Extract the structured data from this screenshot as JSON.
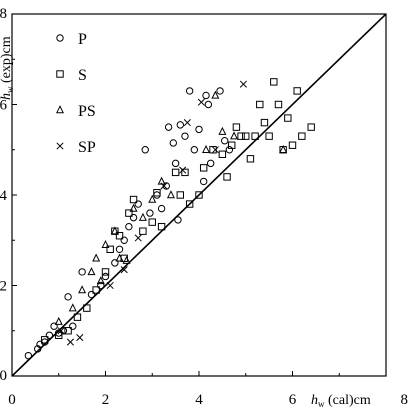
{
  "chart_data": {
    "type": "scatter",
    "title": "",
    "xlabel": {
      "var": "h",
      "sub": "w",
      "rest": "(cal)cm"
    },
    "ylabel": {
      "var": "h",
      "sub": "w",
      "rest": "(exp)cm"
    },
    "xlim": [
      0,
      8
    ],
    "ylim": [
      0,
      8
    ],
    "xticks": [
      "0",
      "2",
      "4",
      "6",
      "8"
    ],
    "yticks": [
      "0",
      "2",
      "4",
      "6",
      "8"
    ],
    "grid": false,
    "legend_position": "top-left",
    "reference_line": {
      "x": [
        0,
        8
      ],
      "y": [
        0,
        8
      ]
    },
    "series": [
      {
        "name": "P",
        "marker": "circle",
        "points": [
          [
            0.35,
            0.45
          ],
          [
            0.55,
            0.6
          ],
          [
            0.6,
            0.7
          ],
          [
            0.7,
            0.75
          ],
          [
            0.8,
            0.9
          ],
          [
            0.9,
            1.1
          ],
          [
            1.0,
            0.95
          ],
          [
            1.1,
            1.0
          ],
          [
            1.2,
            1.75
          ],
          [
            1.3,
            1.1
          ],
          [
            1.5,
            2.3
          ],
          [
            1.7,
            1.8
          ],
          [
            1.9,
            2.0
          ],
          [
            2.0,
            2.2
          ],
          [
            2.2,
            2.5
          ],
          [
            2.3,
            2.8
          ],
          [
            2.4,
            3.0
          ],
          [
            2.5,
            3.3
          ],
          [
            2.6,
            3.5
          ],
          [
            2.7,
            3.8
          ],
          [
            2.85,
            5.0
          ],
          [
            2.95,
            3.6
          ],
          [
            3.1,
            4.0
          ],
          [
            3.2,
            3.7
          ],
          [
            3.3,
            4.2
          ],
          [
            3.35,
            5.5
          ],
          [
            3.45,
            5.15
          ],
          [
            3.5,
            4.7
          ],
          [
            3.55,
            3.45
          ],
          [
            3.6,
            5.55
          ],
          [
            3.7,
            5.3
          ],
          [
            3.8,
            6.3
          ],
          [
            3.9,
            5.0
          ],
          [
            4.0,
            5.45
          ],
          [
            4.1,
            4.3
          ],
          [
            4.15,
            6.2
          ],
          [
            4.2,
            6.0
          ],
          [
            4.25,
            4.7
          ],
          [
            4.45,
            6.3
          ],
          [
            4.55,
            5.2
          ],
          [
            4.65,
            5.0
          ]
        ]
      },
      {
        "name": "S",
        "marker": "square",
        "points": [
          [
            0.7,
            0.8
          ],
          [
            1.0,
            0.9
          ],
          [
            1.2,
            1.0
          ],
          [
            1.4,
            1.3
          ],
          [
            1.6,
            1.5
          ],
          [
            1.8,
            1.9
          ],
          [
            2.0,
            2.3
          ],
          [
            2.1,
            2.8
          ],
          [
            2.2,
            3.2
          ],
          [
            2.3,
            3.1
          ],
          [
            2.4,
            2.6
          ],
          [
            2.5,
            3.6
          ],
          [
            2.6,
            3.9
          ],
          [
            2.8,
            3.2
          ],
          [
            3.0,
            3.4
          ],
          [
            3.1,
            4.05
          ],
          [
            3.2,
            3.3
          ],
          [
            3.5,
            4.5
          ],
          [
            3.6,
            4.0
          ],
          [
            3.7,
            4.5
          ],
          [
            3.8,
            3.8
          ],
          [
            4.0,
            4.0
          ],
          [
            4.1,
            4.6
          ],
          [
            4.3,
            5.0
          ],
          [
            4.5,
            4.9
          ],
          [
            4.6,
            4.4
          ],
          [
            4.7,
            5.1
          ],
          [
            4.8,
            5.5
          ],
          [
            4.9,
            5.3
          ],
          [
            5.0,
            5.3
          ],
          [
            5.1,
            4.8
          ],
          [
            5.2,
            5.3
          ],
          [
            5.3,
            6.0
          ],
          [
            5.4,
            5.6
          ],
          [
            5.5,
            5.3
          ],
          [
            5.6,
            6.5
          ],
          [
            5.7,
            6.0
          ],
          [
            5.8,
            5.0
          ],
          [
            5.9,
            5.7
          ],
          [
            6.0,
            5.1
          ],
          [
            6.1,
            6.3
          ],
          [
            6.2,
            5.3
          ],
          [
            6.4,
            5.5
          ]
        ]
      },
      {
        "name": "PS",
        "marker": "triangle",
        "points": [
          [
            1.0,
            1.2
          ],
          [
            1.3,
            1.5
          ],
          [
            1.5,
            1.9
          ],
          [
            1.7,
            2.3
          ],
          [
            1.8,
            2.6
          ],
          [
            1.9,
            2.1
          ],
          [
            2.0,
            2.9
          ],
          [
            2.2,
            3.2
          ],
          [
            2.3,
            2.6
          ],
          [
            2.45,
            2.55
          ],
          [
            2.6,
            3.7
          ],
          [
            2.8,
            3.5
          ],
          [
            3.0,
            3.9
          ],
          [
            3.2,
            4.3
          ],
          [
            3.4,
            4.0
          ],
          [
            4.15,
            5.0
          ],
          [
            4.35,
            6.2
          ],
          [
            4.5,
            5.4
          ],
          [
            4.75,
            5.3
          ],
          [
            5.8,
            5.0
          ]
        ]
      },
      {
        "name": "SP",
        "marker": "cross",
        "points": [
          [
            1.05,
            1.0
          ],
          [
            1.25,
            0.75
          ],
          [
            1.45,
            0.85
          ],
          [
            2.1,
            2.0
          ],
          [
            2.4,
            2.35
          ],
          [
            2.7,
            3.05
          ],
          [
            3.25,
            4.2
          ],
          [
            3.65,
            4.55
          ],
          [
            3.75,
            5.6
          ],
          [
            4.05,
            6.05
          ],
          [
            4.35,
            5.0
          ],
          [
            4.95,
            6.45
          ]
        ]
      }
    ]
  }
}
